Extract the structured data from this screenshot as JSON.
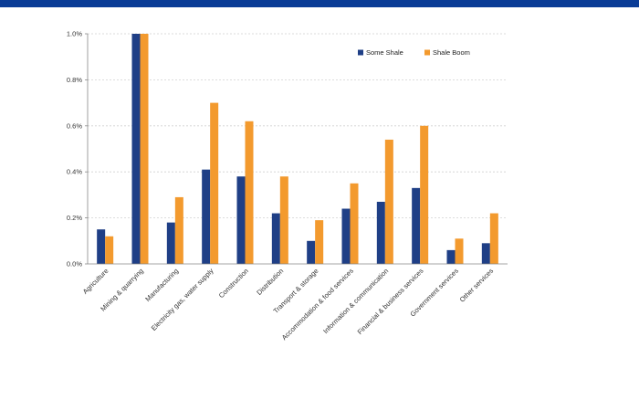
{
  "colors": {
    "top_band": "#0a3c96"
  },
  "chart_data": {
    "type": "bar",
    "categories": [
      "Agriculture",
      "Mining & quarrying",
      "Manufacturing",
      "Electricity gas, water supply",
      "Construction",
      "Distribution",
      "Transport & storage",
      "Accommodation & food services",
      "Information & communication",
      "Financial & business services",
      "Government services",
      "Other services"
    ],
    "series": [
      {
        "name": "Some Shale",
        "color": "#1f3f86",
        "values": [
          0.15,
          1.0,
          0.18,
          0.41,
          0.38,
          0.22,
          0.1,
          0.24,
          0.27,
          0.33,
          0.06,
          0.09
        ]
      },
      {
        "name": "Shale Boom",
        "color": "#f39a2e",
        "values": [
          0.12,
          1.0,
          0.29,
          0.7,
          0.62,
          0.38,
          0.19,
          0.35,
          0.54,
          0.6,
          0.11,
          0.22
        ]
      }
    ],
    "yticks": [
      "0.0%",
      "0.2%",
      "0.4%",
      "0.6%",
      "0.8%",
      "1.0%"
    ],
    "ylim": [
      0,
      1.0
    ],
    "grid": true,
    "legend": "top-right",
    "title": "",
    "xlabel": "",
    "ylabel": ""
  }
}
